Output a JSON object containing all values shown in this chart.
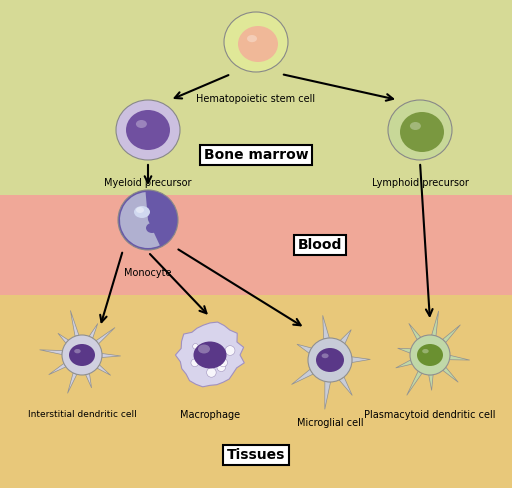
{
  "bg_top_color": "#d6da96",
  "bg_mid_color": "#f0a898",
  "bg_bot_color": "#e8c87a",
  "bone_marrow_label": "Bone marrow",
  "blood_label": "Blood",
  "tissues_label": "Tissues",
  "hsc_label": "Hematopoietic stem cell",
  "myeloid_label": "Myeloid precursor",
  "lymphoid_label": "Lymphoid precursor",
  "monocyte_label": "Monocyte",
  "interstitial_label": "Interstitial dendritic cell",
  "macrophage_label": "Macrophage",
  "microglial_label": "Microglial cell",
  "plasmacytoid_label": "Plasmacytoid dendritic cell",
  "label_fontsize": 7.0,
  "section_fontsize": 10,
  "figsize": [
    5.12,
    4.88
  ],
  "dpi": 100,
  "hsc_outer": "#e0e898",
  "hsc_inner": "#f0b898",
  "mye_outer": "#ccc0e0",
  "mye_inner": "#7050a0",
  "lym_outer": "#c8d898",
  "lym_inner": "#7a9840",
  "mono_dark": "#6858a8",
  "mono_light": "#b0b0d0",
  "idc_body": "#d0d0e0",
  "idc_nucleus": "#5a3888",
  "mac_body": "#d8d4ec",
  "mac_nucleus": "#5a3888",
  "mgc_body": "#c8ccd8",
  "mgc_nucleus": "#5a3888",
  "pdc_body": "#c0d8a8",
  "pdc_nucleus": "#6a9030"
}
